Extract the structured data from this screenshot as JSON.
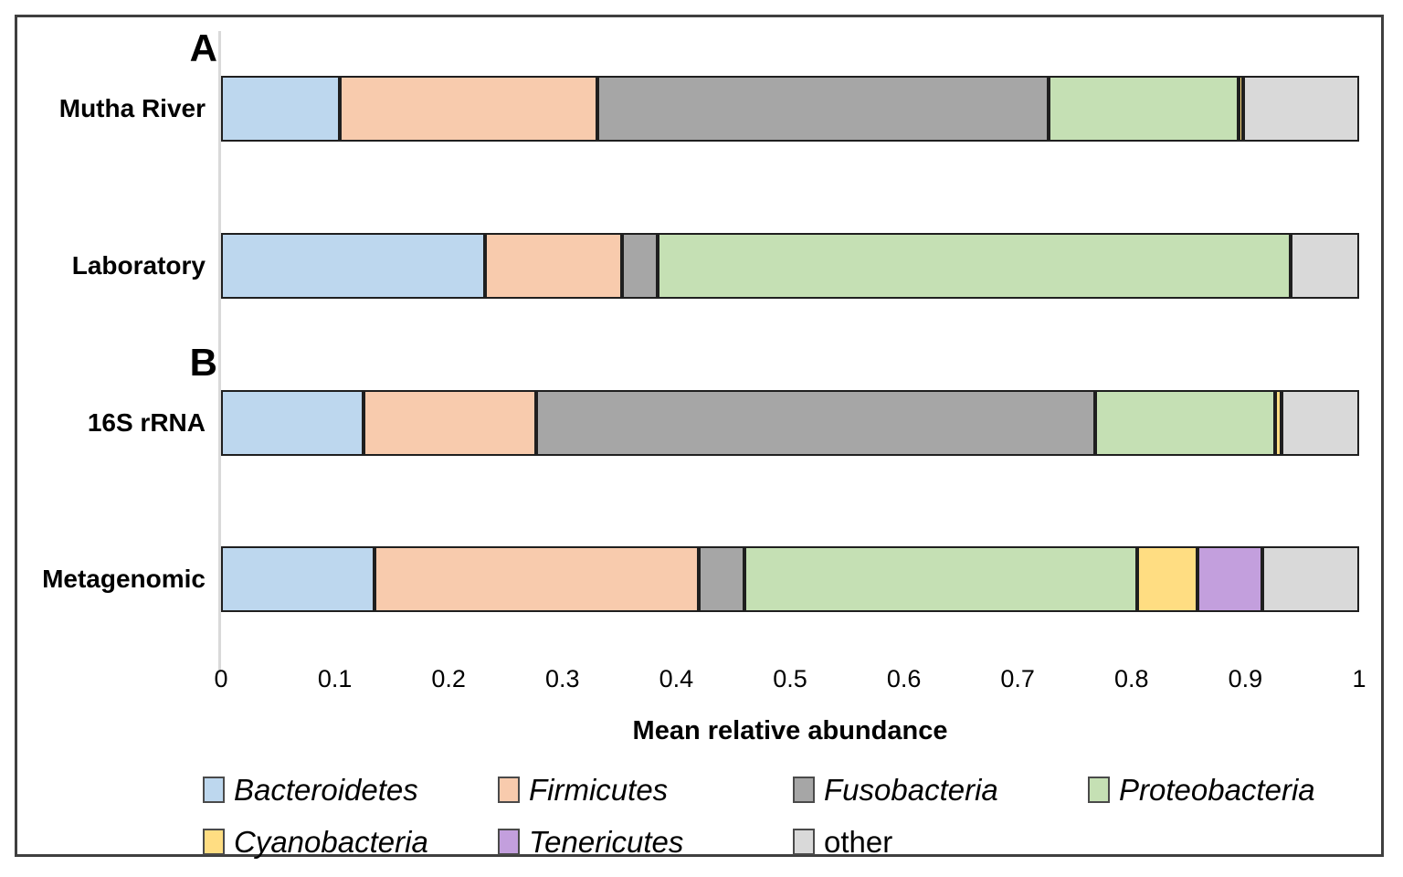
{
  "figure": {
    "panel_a_label": "A",
    "panel_b_label": "B"
  },
  "chart_data": {
    "type": "bar",
    "orientation": "horizontal-stacked",
    "categories": [
      "Mutha River",
      "Laboratory",
      "16S rRNA",
      "Metagenomic"
    ],
    "series": [
      {
        "name": "Bacteroidetes",
        "color": "#BDD7EE",
        "italic": true,
        "values": [
          0.104,
          0.232,
          0.125,
          0.135
        ]
      },
      {
        "name": "Firmicutes",
        "color": "#F8CBAD",
        "italic": true,
        "values": [
          0.227,
          0.12,
          0.152,
          0.285
        ]
      },
      {
        "name": "Fusobacteria",
        "color": "#A6A6A6",
        "italic": true,
        "values": [
          0.396,
          0.032,
          0.491,
          0.04
        ]
      },
      {
        "name": "Proteobacteria",
        "color": "#C5E0B4",
        "italic": true,
        "values": [
          0.167,
          0.556,
          0.158,
          0.345
        ]
      },
      {
        "name": "Cyanobacteria",
        "color": "#FFDD82",
        "italic": true,
        "values": [
          0.004,
          0.0,
          0.006,
          0.053
        ]
      },
      {
        "name": "Tenericutes",
        "color": "#C39FDD",
        "italic": true,
        "values": [
          0.0,
          0.0,
          0.0,
          0.057
        ]
      },
      {
        "name": "other",
        "color": "#D9D9D9",
        "italic": false,
        "values": [
          0.102,
          0.06,
          0.068,
          0.085
        ]
      }
    ],
    "xlabel": "Mean relative abundance",
    "xticks": [
      0,
      0.1,
      0.2,
      0.3,
      0.4,
      0.5,
      0.6,
      0.7,
      0.8,
      0.9,
      1
    ],
    "xlim": [
      0,
      1
    ],
    "legend_position": "bottom",
    "panel_labels": [
      {
        "label": "A",
        "row": 0
      },
      {
        "label": "B",
        "row": 2
      }
    ]
  }
}
